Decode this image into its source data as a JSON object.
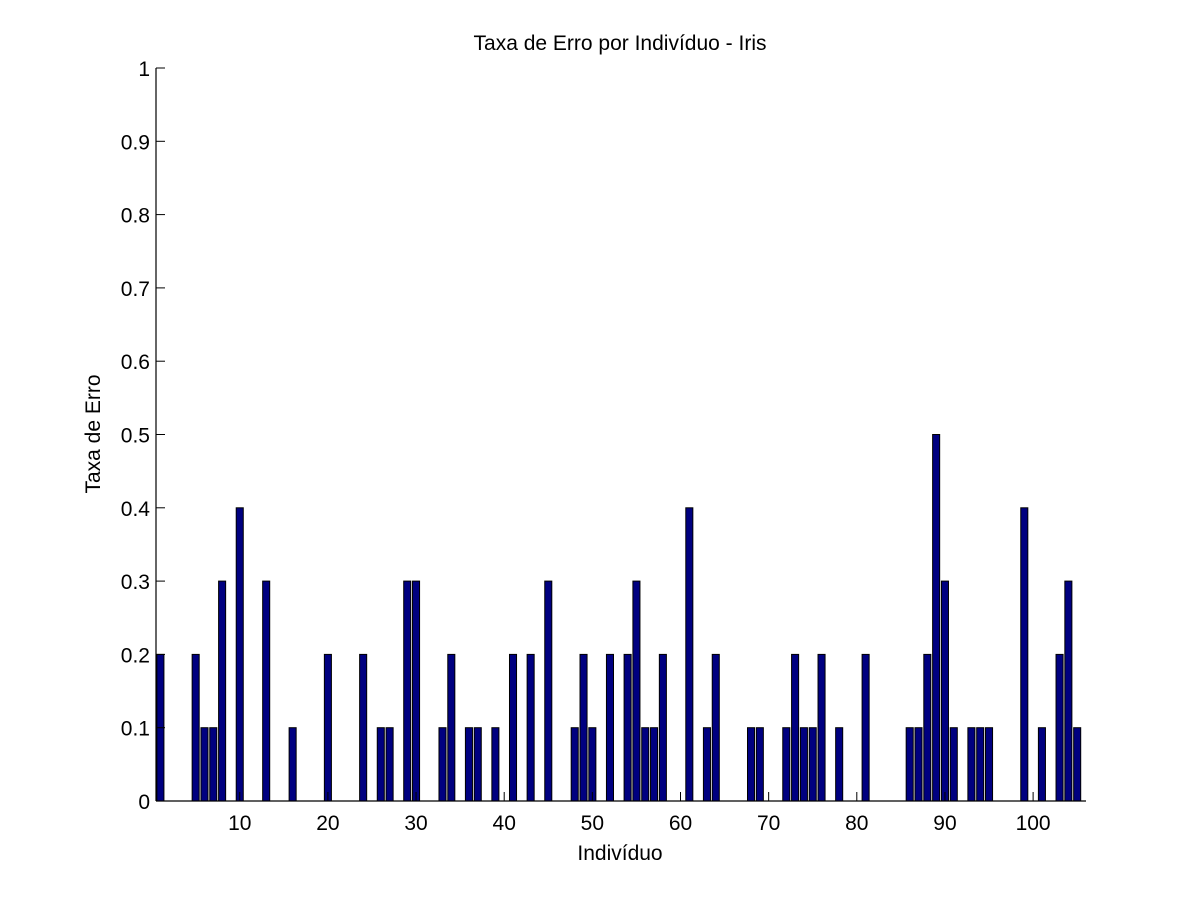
{
  "chart_data": {
    "type": "bar",
    "title": "Taxa de Erro por Indivíduo - Iris",
    "xlabel": "Indivíduo",
    "ylabel": "Taxa de Erro",
    "xlim": [
      0.5,
      106
    ],
    "ylim": [
      0,
      1
    ],
    "xticks": [
      10,
      20,
      30,
      40,
      50,
      60,
      70,
      80,
      90,
      100
    ],
    "yticks": [
      0,
      0.1,
      0.2,
      0.3,
      0.4,
      0.5,
      0.6,
      0.7,
      0.8,
      0.9,
      1
    ],
    "ytick_labels": [
      "0",
      "0.1",
      "0.2",
      "0.3",
      "0.4",
      "0.5",
      "0.6",
      "0.7",
      "0.8",
      "0.9",
      "1"
    ],
    "grid": false,
    "bar_color": "#000080",
    "x": [
      1,
      2,
      3,
      4,
      5,
      6,
      7,
      8,
      9,
      10,
      11,
      12,
      13,
      14,
      15,
      16,
      17,
      18,
      19,
      20,
      21,
      22,
      23,
      24,
      25,
      26,
      27,
      28,
      29,
      30,
      31,
      32,
      33,
      34,
      35,
      36,
      37,
      38,
      39,
      40,
      41,
      42,
      43,
      44,
      45,
      46,
      47,
      48,
      49,
      50,
      51,
      52,
      53,
      54,
      55,
      56,
      57,
      58,
      59,
      60,
      61,
      62,
      63,
      64,
      65,
      66,
      67,
      68,
      69,
      70,
      71,
      72,
      73,
      74,
      75,
      76,
      77,
      78,
      79,
      80,
      81,
      82,
      83,
      84,
      85,
      86,
      87,
      88,
      89,
      90,
      91,
      92,
      93,
      94,
      95,
      96,
      97,
      98,
      99,
      100,
      101,
      102,
      103,
      104,
      105
    ],
    "values": [
      0.2,
      0,
      0,
      0,
      0.2,
      0.1,
      0.1,
      0.3,
      0,
      0.4,
      0,
      0,
      0.3,
      0,
      0,
      0.1,
      0,
      0,
      0,
      0.2,
      0,
      0,
      0,
      0.2,
      0,
      0.1,
      0.1,
      0,
      0.3,
      0.3,
      0,
      0,
      0.1,
      0.2,
      0,
      0.1,
      0.1,
      0,
      0.1,
      0,
      0.2,
      0,
      0.2,
      0,
      0.3,
      0,
      0,
      0.1,
      0.2,
      0.1,
      0,
      0.2,
      0,
      0.2,
      0.3,
      0.1,
      0.1,
      0.2,
      0,
      0,
      0.4,
      0,
      0.1,
      0.2,
      0,
      0,
      0,
      0.1,
      0.1,
      0,
      0,
      0.1,
      0.2,
      0.1,
      0.1,
      0.2,
      0,
      0.1,
      0,
      0,
      0.2,
      0,
      0,
      0,
      0,
      0.1,
      0.1,
      0.2,
      0.5,
      0.3,
      0.1,
      0,
      0.1,
      0.1,
      0.1,
      0,
      0,
      0,
      0.4,
      0,
      0.1,
      0,
      0.2,
      0.3,
      0.1
    ]
  }
}
